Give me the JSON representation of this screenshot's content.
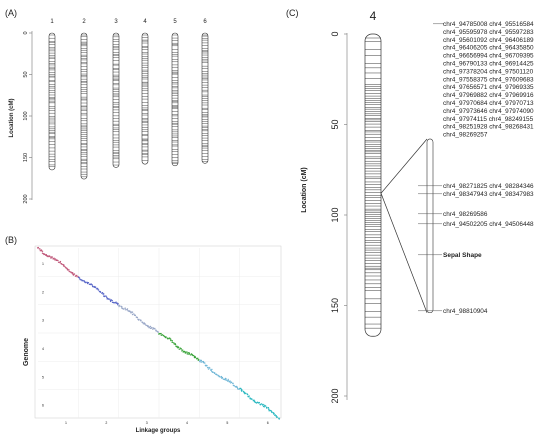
{
  "panels": {
    "a_label": "(A)",
    "b_label": "(B)",
    "c_label": "(C)"
  },
  "panel_a": {
    "ylabel": "Location (cM)",
    "yticks": [
      0,
      50,
      100,
      150,
      200
    ],
    "groups": [
      "1",
      "2",
      "3",
      "4",
      "5",
      "6"
    ],
    "group_lengths": [
      165,
      176,
      162,
      158,
      160,
      157
    ]
  },
  "panel_b": {
    "ylabel": "Genome",
    "xlabel": "Linkage groups",
    "x_ticks": [
      "1",
      "2",
      "3",
      "4",
      "5",
      "6"
    ],
    "y_ticks": [
      "1",
      "2",
      "3",
      "4",
      "5",
      "6"
    ],
    "segment_colors": [
      "#c0587a",
      "#5a68c8",
      "#9aa8c8",
      "#3aa33a",
      "#6fb6d6",
      "#2ab8c0"
    ]
  },
  "panel_c": {
    "chromosome": "4",
    "ylabel": "Location (cM)",
    "yticks": [
      0,
      50,
      100,
      150,
      200
    ],
    "chrom_length": 167,
    "region_range": [
      58,
      154
    ],
    "marker_lines": [
      "chr4_94785008 chr4_95516584",
      "chr4_95595978 chr4_95597283",
      "chr4_95601092 chr4_96406189",
      "chr4_96406205 chr4_96435850",
      "chr4_96656994 chr4_96709395",
      "chr4_96790133 chr4_96914425",
      "chr4_97378204 chr4_97501120",
      "chr4_97558375 chr4_97609683",
      "chr4_97656571 chr4_97969335",
      "chr4_97969882 chr4_97969916",
      "chr4_97970684 chr4_97970713",
      "chr4_97973646 chr4_97974090",
      "chr4_97974115 chr4_98249155",
      "chr4_98251928 chr4_98268431",
      "chr4_98269257",
      "chr4_98271825 chr4_98284346",
      "chr4_98347943 chr4_98347983",
      "chr4_98269586",
      "chr4_94502205 chr4_94506448",
      "Sepal Shape",
      "chr4_98810904"
    ]
  }
}
